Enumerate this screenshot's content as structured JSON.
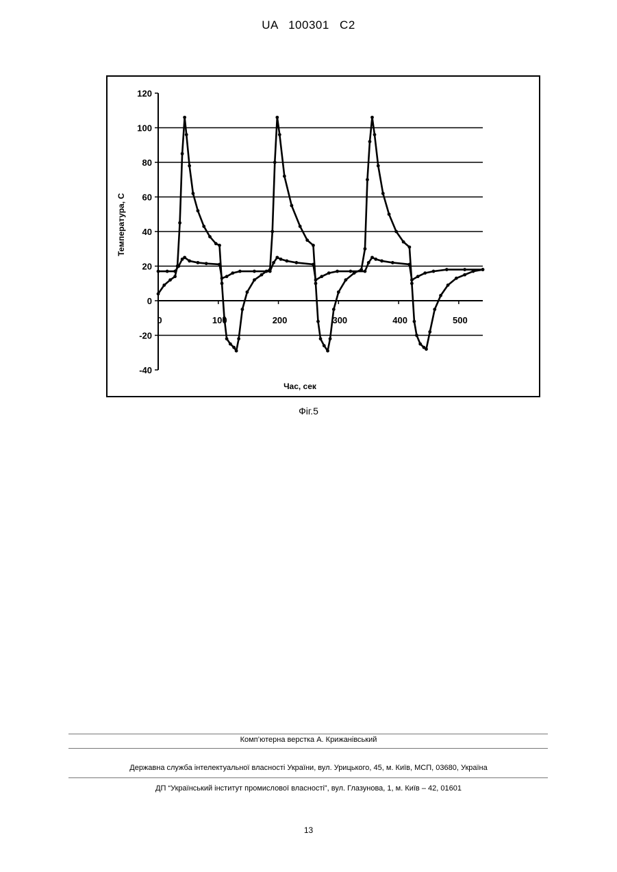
{
  "header": {
    "text": "UA   100301   C2"
  },
  "figure": {
    "caption": "Фіг.5"
  },
  "chart_data": {
    "type": "line",
    "title": "",
    "xlabel": "Час, сек",
    "ylabel": "Температура, С",
    "xlim": [
      0,
      540
    ],
    "ylim": [
      -40,
      120
    ],
    "x_ticks": [
      "0",
      "100",
      "200",
      "300",
      "400",
      "500"
    ],
    "x_tick_values": [
      0,
      100,
      200,
      300,
      400,
      500
    ],
    "y_ticks": [
      "120",
      "100",
      "80",
      "60",
      "40",
      "20",
      "0",
      "-20",
      "-40"
    ],
    "y_tick_values": [
      120,
      100,
      80,
      60,
      40,
      20,
      0,
      -20,
      -40
    ],
    "grid": "horizontal",
    "series": [
      {
        "color": "#000000",
        "points": [
          [
            0,
            4
          ],
          [
            10,
            9
          ],
          [
            20,
            12
          ],
          [
            28,
            14
          ],
          [
            32,
            20
          ],
          [
            36,
            45
          ],
          [
            40,
            85
          ],
          [
            44,
            106
          ],
          [
            47,
            96
          ],
          [
            52,
            78
          ],
          [
            58,
            62
          ],
          [
            66,
            52
          ],
          [
            76,
            43
          ],
          [
            86,
            37
          ],
          [
            96,
            33
          ],
          [
            102,
            32
          ],
          [
            106,
            10
          ],
          [
            110,
            -10
          ],
          [
            114,
            -22
          ],
          [
            120,
            -25
          ],
          [
            126,
            -27
          ],
          [
            130,
            -29
          ],
          [
            134,
            -22
          ],
          [
            140,
            -5
          ],
          [
            148,
            5
          ],
          [
            160,
            12
          ],
          [
            172,
            15
          ],
          [
            180,
            17
          ],
          [
            186,
            18
          ],
          [
            190,
            40
          ],
          [
            194,
            80
          ],
          [
            198,
            106
          ],
          [
            202,
            96
          ],
          [
            210,
            72
          ],
          [
            222,
            55
          ],
          [
            236,
            43
          ],
          [
            248,
            35
          ],
          [
            258,
            32
          ],
          [
            262,
            10
          ],
          [
            266,
            -12
          ],
          [
            270,
            -22
          ],
          [
            276,
            -26
          ],
          [
            282,
            -29
          ],
          [
            286,
            -22
          ],
          [
            292,
            -5
          ],
          [
            300,
            5
          ],
          [
            312,
            12
          ],
          [
            326,
            16
          ],
          [
            338,
            18
          ],
          [
            344,
            30
          ],
          [
            348,
            70
          ],
          [
            352,
            92
          ],
          [
            356,
            106
          ],
          [
            360,
            96
          ],
          [
            366,
            78
          ],
          [
            374,
            62
          ],
          [
            384,
            50
          ],
          [
            396,
            40
          ],
          [
            408,
            34
          ],
          [
            418,
            31
          ],
          [
            422,
            10
          ],
          [
            426,
            -12
          ],
          [
            430,
            -20
          ],
          [
            436,
            -25
          ],
          [
            442,
            -27
          ],
          [
            446,
            -28
          ],
          [
            452,
            -18
          ],
          [
            460,
            -5
          ],
          [
            470,
            3
          ],
          [
            482,
            9
          ],
          [
            496,
            13
          ],
          [
            510,
            15
          ],
          [
            524,
            17
          ],
          [
            540,
            18
          ]
        ]
      },
      {
        "color": "#000000",
        "points": [
          [
            0,
            17
          ],
          [
            15,
            17
          ],
          [
            28,
            17
          ],
          [
            34,
            20
          ],
          [
            40,
            24
          ],
          [
            44,
            25
          ],
          [
            52,
            23
          ],
          [
            66,
            22
          ],
          [
            80,
            21.5
          ],
          [
            102,
            21
          ],
          [
            106,
            13
          ],
          [
            114,
            14
          ],
          [
            124,
            16
          ],
          [
            136,
            17
          ],
          [
            160,
            17
          ],
          [
            186,
            17
          ],
          [
            192,
            22
          ],
          [
            198,
            25
          ],
          [
            204,
            24
          ],
          [
            214,
            23
          ],
          [
            230,
            22
          ],
          [
            258,
            21
          ],
          [
            262,
            12
          ],
          [
            272,
            14
          ],
          [
            284,
            16
          ],
          [
            298,
            17
          ],
          [
            320,
            17
          ],
          [
            344,
            17
          ],
          [
            350,
            22
          ],
          [
            356,
            25
          ],
          [
            362,
            24
          ],
          [
            372,
            23
          ],
          [
            390,
            22
          ],
          [
            418,
            21
          ],
          [
            422,
            12
          ],
          [
            432,
            14
          ],
          [
            444,
            16
          ],
          [
            458,
            17
          ],
          [
            480,
            18
          ],
          [
            510,
            18
          ],
          [
            540,
            18
          ]
        ]
      }
    ]
  },
  "footer": {
    "line1": "Комп’ютерна верстка А. Крижанівський",
    "line2": "Державна служба інтелектуальної власності України, вул. Урицького, 45, м. Київ, МСП, 03680, Україна",
    "line3": "ДП “Український інститут промислової власності”, вул. Глазунова, 1, м. Київ – 42, 01601"
  },
  "page": {
    "number": "13"
  }
}
